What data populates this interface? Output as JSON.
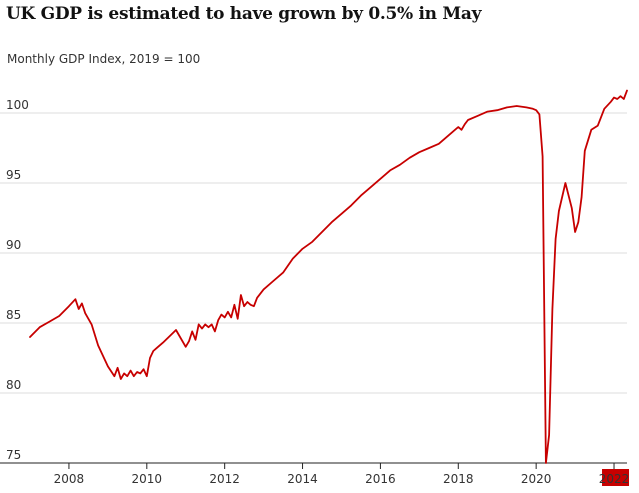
{
  "chart_data": {
    "type": "line",
    "title": "UK GDP is estimated to have grown by 0.5% in May",
    "subtitle": "Monthly GDP Index, 2019 = 100",
    "xlabel": "",
    "ylabel": "",
    "ylim": [
      75,
      101.8
    ],
    "xlim": [
      "2007-01",
      "2022-05"
    ],
    "y_ticks": [
      75,
      80,
      85,
      90,
      95,
      100
    ],
    "x_ticks": [
      {
        "label": "2008",
        "value": "2008-01"
      },
      {
        "label": "2010",
        "value": "2010-01"
      },
      {
        "label": "2012",
        "value": "2012-01"
      },
      {
        "label": "2014",
        "value": "2014-01"
      },
      {
        "label": "2016",
        "value": "2016-01"
      },
      {
        "label": "2018",
        "value": "2018-01"
      },
      {
        "label": "2020",
        "value": "2020-01"
      },
      {
        "label": "2022",
        "value": "2022-01",
        "highlight": true
      }
    ],
    "grid": true,
    "colors": {
      "line": "#c70000",
      "grid": "#dcdcdc",
      "highlight": "#c70000"
    },
    "series": [
      {
        "x": [
          "2007-01",
          "2007-04",
          "2007-07",
          "2007-10",
          "2008-01",
          "2008-03",
          "2008-04",
          "2008-05",
          "2008-06",
          "2008-08",
          "2008-10",
          "2009-01",
          "2009-03",
          "2009-04",
          "2009-05",
          "2009-06",
          "2009-07",
          "2009-08",
          "2009-09",
          "2009-10",
          "2009-11",
          "2009-12",
          "2010-01",
          "2010-02",
          "2010-03",
          "2010-04",
          "2010-06",
          "2010-10",
          "2011-01",
          "2011-02",
          "2011-03",
          "2011-04",
          "2011-05",
          "2011-06",
          "2011-07",
          "2011-08",
          "2011-09",
          "2011-10",
          "2011-11",
          "2011-12",
          "2012-01",
          "2012-02",
          "2012-03",
          "2012-04",
          "2012-05",
          "2012-06",
          "2012-07",
          "2012-08",
          "2012-09",
          "2012-10",
          "2012-11",
          "2013-01",
          "2013-04",
          "2013-07",
          "2013-10",
          "2014-01",
          "2014-04",
          "2014-07",
          "2014-10",
          "2015-01",
          "2015-04",
          "2015-07",
          "2015-10",
          "2016-01",
          "2016-04",
          "2016-07",
          "2016-10",
          "2017-01",
          "2017-04",
          "2017-07",
          "2017-10",
          "2018-01",
          "2018-02",
          "2018-03",
          "2018-04",
          "2018-07",
          "2018-10",
          "2019-01",
          "2019-04",
          "2019-07",
          "2019-10",
          "2019-12",
          "2020-01",
          "2020-02",
          "2020-03",
          "2020-04",
          "2020-05",
          "2020-06",
          "2020-07",
          "2020-08",
          "2020-10",
          "2020-12",
          "2021-01",
          "2021-02",
          "2021-03",
          "2021-04",
          "2021-06",
          "2021-08",
          "2021-10",
          "2021-12",
          "2022-01",
          "2022-02",
          "2022-03",
          "2022-04",
          "2022-05"
        ],
        "values": [
          84.0,
          84.7,
          85.1,
          85.5,
          86.2,
          86.7,
          86.0,
          86.4,
          85.7,
          84.9,
          83.4,
          81.9,
          81.2,
          81.8,
          81.0,
          81.4,
          81.2,
          81.6,
          81.2,
          81.5,
          81.4,
          81.7,
          81.2,
          82.5,
          83.0,
          83.2,
          83.6,
          84.5,
          83.3,
          83.7,
          84.4,
          83.8,
          84.9,
          84.6,
          84.9,
          84.7,
          84.9,
          84.4,
          85.2,
          85.6,
          85.4,
          85.8,
          85.4,
          86.3,
          85.3,
          87.0,
          86.2,
          86.5,
          86.3,
          86.2,
          86.8,
          87.4,
          88.0,
          88.6,
          89.6,
          90.3,
          90.8,
          91.5,
          92.2,
          92.8,
          93.4,
          94.1,
          94.7,
          95.3,
          95.9,
          96.3,
          96.8,
          97.2,
          97.5,
          97.8,
          98.4,
          99.0,
          98.8,
          99.2,
          99.5,
          99.8,
          100.1,
          100.2,
          100.4,
          100.5,
          100.4,
          100.3,
          100.2,
          99.9,
          96.9,
          75.0,
          77.0,
          86.0,
          91.0,
          93.0,
          95.0,
          93.2,
          91.5,
          92.2,
          94.0,
          97.3,
          98.8,
          99.1,
          100.3,
          100.8,
          101.1,
          101.0,
          101.2,
          101.0,
          101.6
        ]
      }
    ]
  }
}
